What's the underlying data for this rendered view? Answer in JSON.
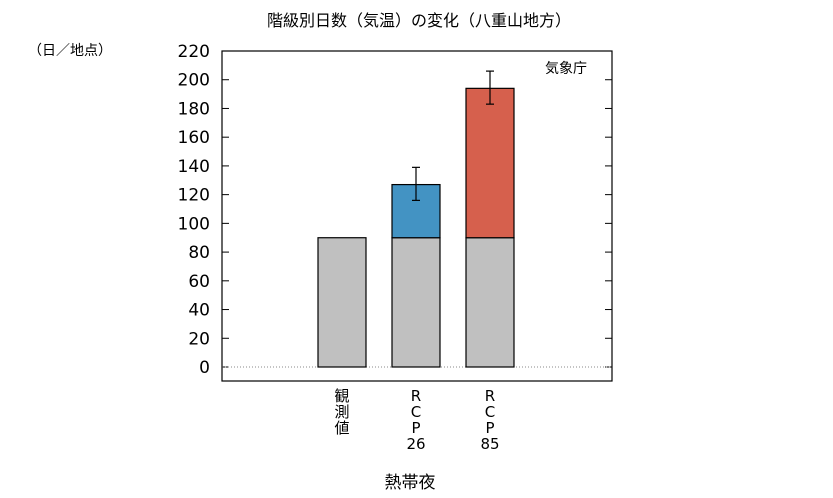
{
  "chart_data": {
    "type": "bar",
    "stacked": true,
    "title": "階級別日数（気温）の変化（八重山地方）",
    "unit_label": "（日／地点）",
    "source": "気象庁",
    "xlabel": "熱帯夜",
    "ylim": [
      0,
      220
    ],
    "yticks": [
      0,
      20,
      40,
      60,
      80,
      100,
      120,
      140,
      160,
      180,
      200,
      220
    ],
    "categories": [
      "観測値",
      "RCP26",
      "RCP85"
    ],
    "category_label_lines": [
      [
        "観",
        "測",
        "値"
      ],
      [
        "R",
        "C",
        "P",
        "26"
      ],
      [
        "R",
        "C",
        "P",
        "85"
      ]
    ],
    "series": [
      {
        "values": [
          90,
          90,
          90
        ],
        "color": "#c0c0c0"
      },
      {
        "values": [
          0,
          37,
          104
        ],
        "color": "#4393c3",
        "category_colors": [
          null,
          "#4393c3",
          "#d6604d"
        ]
      }
    ],
    "error_bars": [
      null,
      {
        "total": 127,
        "low": 116,
        "high": 139
      },
      {
        "total": 194,
        "low": 183,
        "high": 206
      }
    ],
    "colors": {
      "observed": "#c0c0c0",
      "rcp26": "#4393c3",
      "rcp85": "#d6604d"
    },
    "grid": false
  }
}
